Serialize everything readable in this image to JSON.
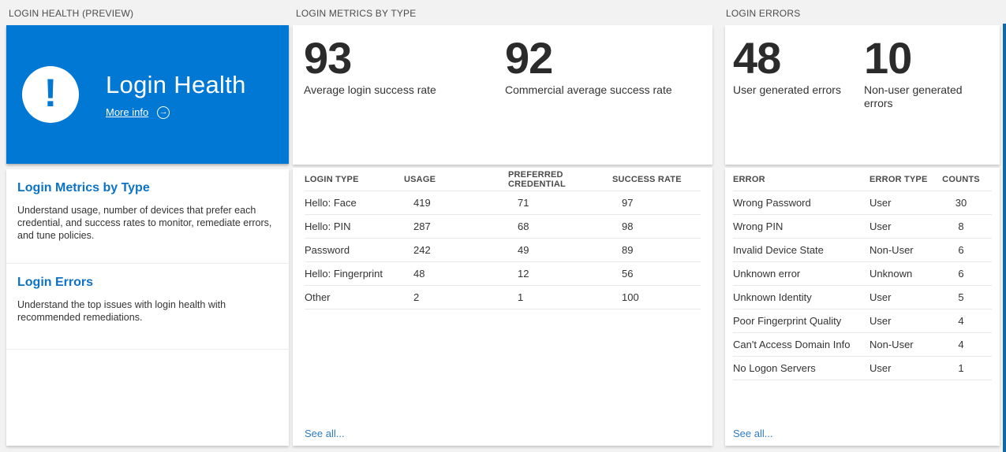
{
  "colors": {
    "accent": "#0078d4",
    "link": "#0b72c6",
    "see_all_link": "#2e7cc4",
    "background": "#f2f2f2"
  },
  "columns": {
    "health": {
      "header": "LOGIN HEALTH (PREVIEW)",
      "tile": {
        "title": "Login Health",
        "more_info_label": "More info",
        "icons": [
          "exclamation-icon",
          "arrow-right-circle-icon"
        ]
      },
      "sections": [
        {
          "title": "Login Metrics by Type",
          "description": "Understand usage, number of devices that prefer each credential, and success rates to monitor, remediate errors, and tune policies."
        },
        {
          "title": "Login Errors",
          "description": "Understand the top issues with login health with recommended remediations."
        }
      ]
    },
    "metrics": {
      "header": "LOGIN METRICS BY TYPE",
      "stats": [
        {
          "value": "93",
          "label": "Average login success rate"
        },
        {
          "value": "92",
          "label": "Commercial average success rate"
        }
      ],
      "table": {
        "columns": [
          "LOGIN TYPE",
          "USAGE",
          "PREFERRED CREDENTIAL",
          "SUCCESS RATE"
        ],
        "rows": [
          [
            "Hello: Face",
            "419",
            "71",
            "97"
          ],
          [
            "Hello: PIN",
            "287",
            "68",
            "98"
          ],
          [
            "Password",
            "242",
            "49",
            "89"
          ],
          [
            "Hello: Fingerprint",
            "48",
            "12",
            "56"
          ],
          [
            "Other",
            "2",
            "1",
            "100"
          ]
        ]
      },
      "see_all": "See all..."
    },
    "errors": {
      "header": "LOGIN ERRORS",
      "stats": [
        {
          "value": "48",
          "label": "User generated errors"
        },
        {
          "value": "10",
          "label": "Non-user generated errors"
        }
      ],
      "table": {
        "columns": [
          "ERROR",
          "ERROR TYPE",
          "COUNTS"
        ],
        "rows": [
          [
            "Wrong Password",
            "User",
            "30"
          ],
          [
            "Wrong PIN",
            "User",
            "8"
          ],
          [
            "Invalid Device State",
            "Non-User",
            "6"
          ],
          [
            "Unknown error",
            "Unknown",
            "6"
          ],
          [
            "Unknown Identity",
            "User",
            "5"
          ],
          [
            "Poor Fingerprint Quality",
            "User",
            "4"
          ],
          [
            "Can't Access Domain Info",
            "Non-User",
            "4"
          ],
          [
            "No Logon Servers",
            "User",
            "1"
          ]
        ]
      },
      "see_all": "See all..."
    }
  }
}
